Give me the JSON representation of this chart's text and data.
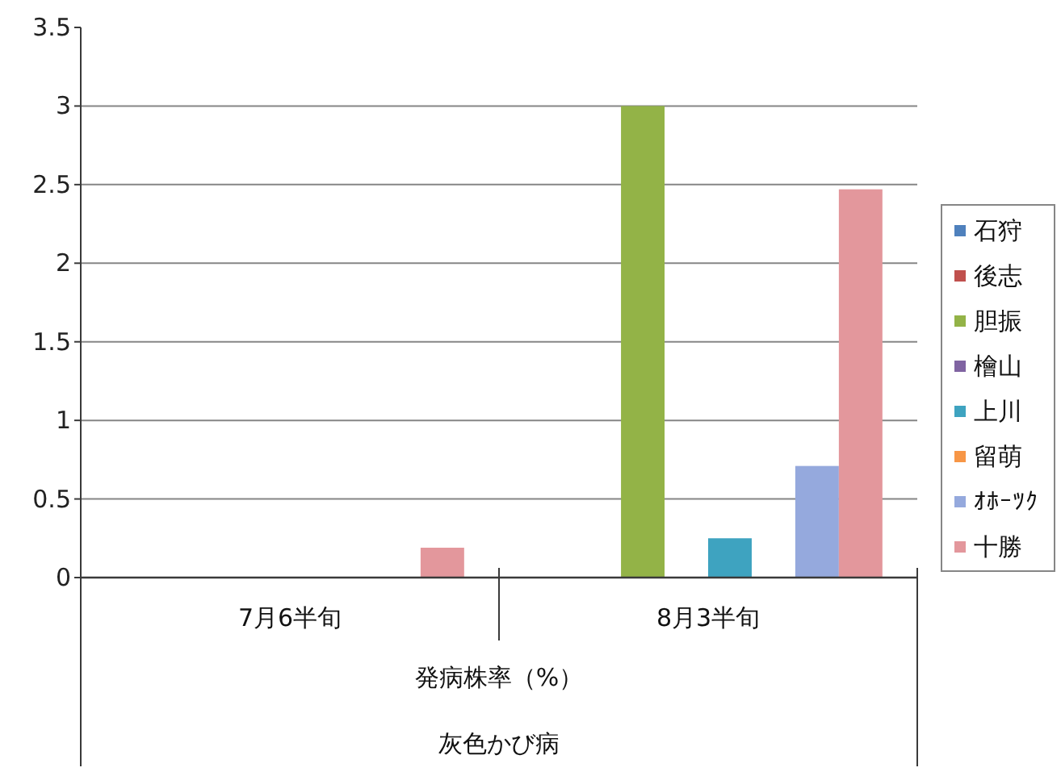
{
  "chart_data": {
    "type": "bar",
    "categories": [
      "7月6半旬",
      "8月3半旬"
    ],
    "xlabel": "発病株率（%）",
    "annotations": [
      "灰色かび病"
    ],
    "series": [
      {
        "name": "石狩",
        "color": "#4f81bd",
        "values": [
          0,
          0
        ]
      },
      {
        "name": "後志",
        "color": "#c0504d",
        "values": [
          0,
          0
        ]
      },
      {
        "name": "胆振",
        "color": "#93b347",
        "values": [
          0,
          3
        ]
      },
      {
        "name": "檜山",
        "color": "#8064a2",
        "values": [
          0,
          0
        ]
      },
      {
        "name": "上川",
        "color": "#3ea3c0",
        "values": [
          0,
          0.25
        ]
      },
      {
        "name": "留萌",
        "color": "#f79646",
        "values": [
          0,
          0
        ]
      },
      {
        "name": "ｵﾎｰﾂｸ",
        "color": "#95a9dd",
        "values": [
          0,
          0.71
        ]
      },
      {
        "name": "十勝",
        "color": "#e3979c",
        "values": [
          0.19,
          2.47
        ]
      }
    ],
    "ylim": [
      0,
      3.5
    ],
    "yticks": [
      0,
      0.5,
      1,
      1.5,
      2,
      2.5,
      3,
      3.5
    ],
    "grid": "y",
    "legend": "right"
  }
}
